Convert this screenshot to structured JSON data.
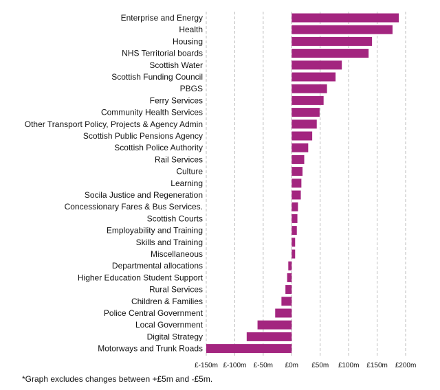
{
  "chart_data": {
    "type": "bar",
    "orientation": "horizontal",
    "unit": "£m",
    "bar_color": "#a3257f",
    "grid": true,
    "xlim": [
      -150,
      200
    ],
    "xticks": [
      {
        "value": -150,
        "label": "£-150m"
      },
      {
        "value": -100,
        "label": "£-100m"
      },
      {
        "value": -50,
        "label": "£-50m"
      },
      {
        "value": 0,
        "label": "£0m"
      },
      {
        "value": 50,
        "label": "£50m"
      },
      {
        "value": 100,
        "label": "£100m"
      },
      {
        "value": 150,
        "label": "£150m"
      },
      {
        "value": 200,
        "label": "£200m"
      }
    ],
    "categories": [
      "Enterprise and Energy",
      "Health",
      "Housing",
      "NHS Territorial boards",
      "Scottish Water",
      "Scottish Funding Council",
      "PBGS",
      "Ferry Services",
      "Community Health Services",
      "Other Transport Policy, Projects & Agency Admin",
      "Scottish Public Pensions Agency",
      "Scottish Police Authority",
      "Rail Services",
      "Culture",
      "Learning",
      "Socila Justice and Regeneration",
      "Concessionary Fares & Bus Services.",
      "Scottish Courts",
      "Employability and Training",
      "Skills and Training",
      "Miscellaneous",
      "Departmental allocations",
      "Higher Education Student Support",
      "Rural Services",
      "Children & Families",
      "Police Central Government",
      "Local Government",
      "Digital Strategy",
      "Motorways and Trunk Roads"
    ],
    "values": [
      188,
      177,
      141,
      135,
      88,
      77,
      62,
      56,
      49,
      44,
      36,
      29,
      22,
      19,
      17,
      16,
      11,
      10,
      9,
      6,
      6,
      -6,
      -8,
      -11,
      -18,
      -29,
      -60,
      -79,
      -150
    ]
  },
  "footnote": "*Graph excludes changes between +£5m and -£5m."
}
